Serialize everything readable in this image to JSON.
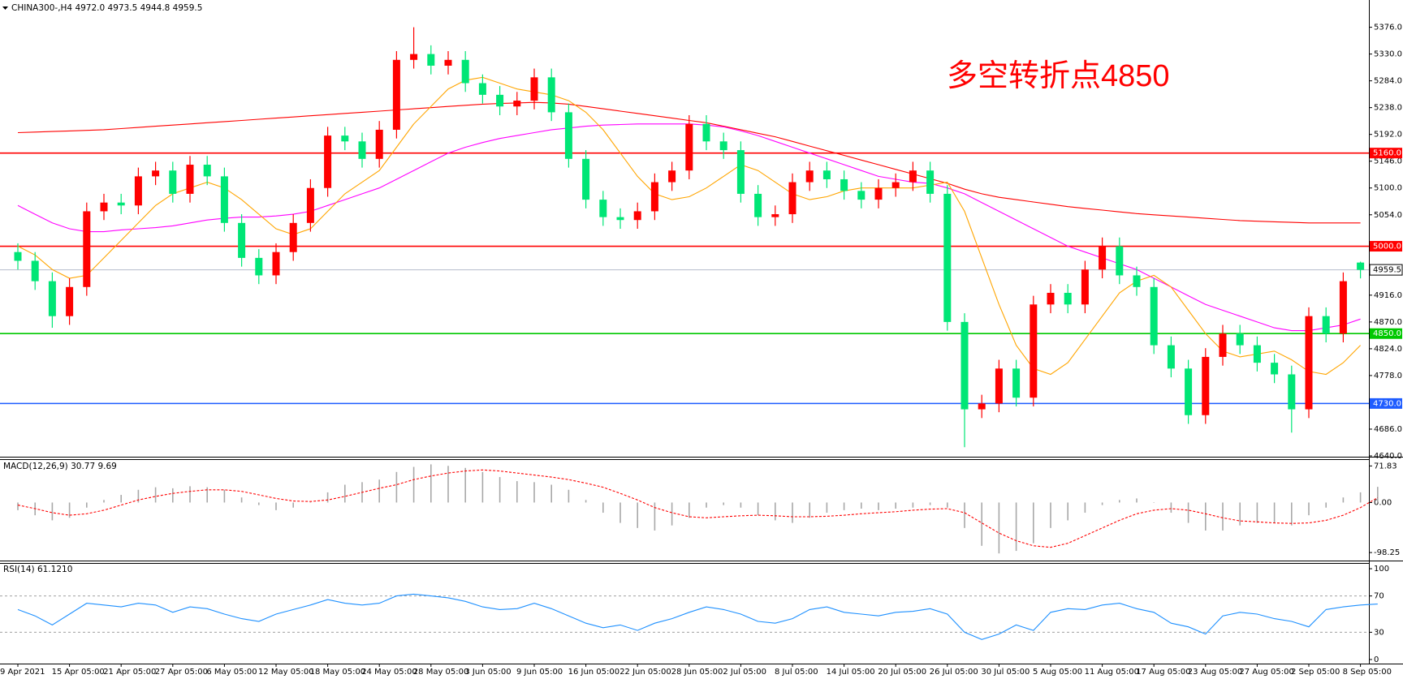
{
  "chart_data": [
    {
      "type": "candlestick",
      "title": "CHINA300-,H4  4972.0 4973.5 4944.8 4959.5",
      "up_color": "#ff0000",
      "down_color": "#00e676",
      "categories": [
        "9 Apr 2021",
        null,
        null,
        "15 Apr 05:00",
        null,
        null,
        "21 Apr 05:00",
        null,
        null,
        "27 Apr 05:00",
        null,
        null,
        "6 May 05:00",
        null,
        null,
        "12 May 05:00",
        null,
        null,
        "18 May 05:00",
        null,
        null,
        "24 May 05:00",
        null,
        null,
        "28 May 05:00",
        null,
        null,
        "3 Jun 05:00",
        null,
        null,
        "9 Jun 05:00",
        null,
        null,
        "16 Jun 05:00",
        null,
        null,
        "22 Jun 05:00",
        null,
        null,
        "28 Jun 05:00",
        null,
        null,
        "2 Jul 05:00",
        null,
        null,
        "8 Jul 05:00",
        null,
        null,
        "14 Jul 05:00",
        null,
        null,
        "20 Jul 05:00",
        null,
        null,
        "26 Jul 05:00",
        null,
        null,
        "30 Jul 05:00",
        null,
        null,
        "5 Aug 05:00",
        null,
        null,
        "11 Aug 05:00",
        null,
        null,
        "17 Aug 05:00",
        null,
        null,
        "23 Aug 05:00",
        null,
        null,
        "27 Aug 05:00",
        null,
        null,
        "2 Sep 05:00",
        null,
        null,
        "8 Sep 05:00"
      ],
      "open": [
        4990,
        4975,
        4940,
        4880,
        4930,
        5060,
        5075,
        5070,
        5120,
        5130,
        5090,
        5140,
        5120,
        5040,
        4980,
        4950,
        4990,
        5040,
        5100,
        5190,
        5180,
        5150,
        5200,
        5320,
        5330,
        5310,
        5320,
        5280,
        5260,
        5240,
        5250,
        5290,
        5230,
        5150,
        5080,
        5050,
        5045,
        5060,
        5110,
        5130,
        5210,
        5180,
        5165,
        5090,
        5050,
        5055,
        5110,
        5130,
        5115,
        5095,
        5080,
        5100,
        5110,
        5130,
        5090,
        4870,
        4720,
        4730,
        4790,
        4740,
        4900,
        4920,
        4900,
        4960,
        5000,
        4950,
        4930,
        4830,
        4790,
        4710,
        4810,
        4850,
        4830,
        4800,
        4780,
        4720,
        4880,
        4850,
        4972.0
      ],
      "high": [
        5005,
        4990,
        4955,
        4945,
        5075,
        5090,
        5090,
        5135,
        5145,
        5145,
        5155,
        5155,
        5135,
        5055,
        4995,
        5005,
        5055,
        5115,
        5205,
        5205,
        5195,
        5215,
        5335,
        5376,
        5345,
        5335,
        5335,
        5295,
        5275,
        5265,
        5305,
        5305,
        5245,
        5165,
        5095,
        5065,
        5075,
        5125,
        5145,
        5225,
        5225,
        5195,
        5180,
        5105,
        5070,
        5125,
        5145,
        5145,
        5130,
        5110,
        5115,
        5125,
        5145,
        5145,
        5105,
        4885,
        4745,
        4805,
        4805,
        4915,
        4935,
        4935,
        4975,
        5015,
        5015,
        4965,
        4945,
        4845,
        4805,
        4825,
        4865,
        4865,
        4845,
        4815,
        4795,
        4895,
        4895,
        4955,
        4973.5
      ],
      "low": [
        4960,
        4925,
        4860,
        4865,
        4915,
        5045,
        5055,
        5055,
        5105,
        5075,
        5075,
        5105,
        5025,
        4965,
        4935,
        4935,
        4975,
        5025,
        5085,
        5165,
        5135,
        5135,
        5185,
        5305,
        5295,
        5295,
        5265,
        5245,
        5225,
        5225,
        5235,
        5215,
        5135,
        5065,
        5035,
        5030,
        5030,
        5045,
        5095,
        5115,
        5165,
        5150,
        5075,
        5035,
        5035,
        5040,
        5095,
        5100,
        5080,
        5065,
        5065,
        5085,
        5095,
        5075,
        4855,
        4655,
        4705,
        4715,
        4725,
        4725,
        4885,
        4885,
        4885,
        4945,
        4935,
        4915,
        4815,
        4775,
        4695,
        4695,
        4795,
        4815,
        4785,
        4765,
        4680,
        4705,
        4835,
        4835,
        4944.8
      ],
      "close": [
        4975,
        4940,
        4880,
        4930,
        5060,
        5075,
        5070,
        5120,
        5130,
        5090,
        5140,
        5120,
        5040,
        4980,
        4950,
        4990,
        5040,
        5100,
        5190,
        5180,
        5150,
        5200,
        5320,
        5330,
        5310,
        5320,
        5280,
        5260,
        5240,
        5250,
        5290,
        5230,
        5150,
        5080,
        5050,
        5045,
        5060,
        5110,
        5130,
        5210,
        5180,
        5165,
        5090,
        5050,
        5055,
        5110,
        5130,
        5115,
        5095,
        5080,
        5100,
        5110,
        5130,
        5090,
        4870,
        4720,
        4730,
        4790,
        4740,
        4900,
        4920,
        4900,
        4960,
        5000,
        4950,
        4930,
        4830,
        4790,
        4710,
        4810,
        4850,
        4830,
        4800,
        4780,
        4720,
        4880,
        4850,
        4940,
        4959.5
      ],
      "series": [
        {
          "color": "#ff0000",
          "values": [
            5195,
            5196,
            5197,
            5198,
            5199,
            5200,
            5202,
            5204,
            5206,
            5208,
            5210,
            5212,
            5214,
            5216,
            5218,
            5220,
            5222,
            5224,
            5226,
            5228,
            5230,
            5232,
            5234,
            5236,
            5238,
            5240,
            5242,
            5244,
            5245,
            5246,
            5247,
            5246,
            5244,
            5240,
            5236,
            5232,
            5228,
            5224,
            5220,
            5216,
            5212,
            5206,
            5200,
            5194,
            5188,
            5180,
            5172,
            5164,
            5156,
            5148,
            5140,
            5132,
            5124,
            5116,
            5108,
            5098,
            5090,
            5084,
            5080,
            5076,
            5072,
            5068,
            5065,
            5062,
            5059,
            5056,
            5054,
            5052,
            5050,
            5048,
            5046,
            5044,
            5043,
            5042,
            5041,
            5040,
            5040,
            5040,
            5040
          ]
        },
        {
          "color": "#ff00ff",
          "values": [
            5070,
            5055,
            5040,
            5030,
            5025,
            5025,
            5028,
            5030,
            5032,
            5035,
            5040,
            5045,
            5048,
            5050,
            5050,
            5052,
            5055,
            5060,
            5070,
            5080,
            5090,
            5100,
            5115,
            5130,
            5145,
            5160,
            5170,
            5178,
            5185,
            5190,
            5195,
            5200,
            5203,
            5206,
            5208,
            5209,
            5210,
            5210,
            5210,
            5210,
            5208,
            5205,
            5198,
            5190,
            5180,
            5170,
            5160,
            5150,
            5140,
            5130,
            5120,
            5115,
            5110,
            5108,
            5100,
            5090,
            5075,
            5060,
            5045,
            5030,
            5015,
            5000,
            4990,
            4980,
            4970,
            4960,
            4945,
            4930,
            4915,
            4900,
            4890,
            4880,
            4870,
            4860,
            4855,
            4855,
            4860,
            4865,
            4875
          ]
        },
        {
          "color": "#ffa500",
          "values": [
            5000,
            4985,
            4960,
            4945,
            4950,
            4980,
            5010,
            5040,
            5070,
            5090,
            5100,
            5110,
            5100,
            5080,
            5055,
            5030,
            5020,
            5030,
            5060,
            5090,
            5110,
            5130,
            5170,
            5210,
            5240,
            5270,
            5285,
            5290,
            5280,
            5270,
            5265,
            5260,
            5250,
            5230,
            5200,
            5160,
            5120,
            5090,
            5080,
            5085,
            5100,
            5120,
            5140,
            5130,
            5110,
            5090,
            5080,
            5085,
            5095,
            5100,
            5100,
            5100,
            5100,
            5105,
            5110,
            5060,
            4980,
            4900,
            4830,
            4790,
            4780,
            4800,
            4840,
            4880,
            4920,
            4940,
            4950,
            4930,
            4890,
            4850,
            4820,
            4810,
            4815,
            4820,
            4805,
            4785,
            4780,
            4800,
            4830
          ]
        }
      ],
      "levels": [
        {
          "value": 5160,
          "label": "5160.0",
          "color": "#ff0000"
        },
        {
          "value": 5000,
          "label": "5000.0",
          "color": "#ff0000"
        },
        {
          "value": 4850,
          "label": "4850.0",
          "color": "#00c800"
        },
        {
          "value": 4730,
          "label": "4730.0",
          "color": "#1e5cff"
        }
      ],
      "price_line": {
        "value": 4959.5,
        "label": "4959.5",
        "color": "#b4bccc"
      },
      "annotation": {
        "text": "多空转折点4850",
        "color": "#ff0000"
      },
      "ylim": [
        4640,
        5420
      ],
      "yticks": [
        {
          "value": 5376,
          "label": "5376.0"
        },
        {
          "value": 5330,
          "label": "5330.0"
        },
        {
          "value": 5284,
          "label": "5284.0"
        },
        {
          "value": 5238,
          "label": "5238.0"
        },
        {
          "value": 5192,
          "label": "5192.0"
        },
        {
          "value": 5146,
          "label": "5146.0"
        },
        {
          "value": 5100,
          "label": "5100.0"
        },
        {
          "value": 5054,
          "label": "5054.0"
        },
        {
          "value": 4916,
          "label": "4916.0"
        },
        {
          "value": 4870,
          "label": "4870.0"
        },
        {
          "value": 4824,
          "label": "4824.0"
        },
        {
          "value": 4778,
          "label": "4778.0"
        },
        {
          "value": 4686,
          "label": "4686.0"
        },
        {
          "value": 4640,
          "label": "4640.0"
        }
      ]
    },
    {
      "type": "macd",
      "title": "MACD(12,26,9) 30.77 9.69",
      "histogram_color": "#a8a8a8",
      "signal_color": "#ff0000",
      "histogram": [
        -15,
        -25,
        -35,
        -30,
        -10,
        5,
        15,
        25,
        30,
        28,
        32,
        30,
        25,
        10,
        -5,
        -15,
        -10,
        0,
        20,
        35,
        40,
        45,
        60,
        70,
        75,
        72,
        68,
        60,
        50,
        42,
        40,
        35,
        25,
        5,
        -20,
        -40,
        -50,
        -55,
        -45,
        -30,
        -10,
        -5,
        -10,
        -25,
        -35,
        -40,
        -30,
        -20,
        -15,
        -12,
        -15,
        -12,
        -10,
        -5,
        -10,
        -50,
        -85,
        -100,
        -95,
        -80,
        -50,
        -35,
        -20,
        -5,
        5,
        8,
        0,
        -20,
        -40,
        -55,
        -55,
        -45,
        -40,
        -40,
        -45,
        -25,
        -10,
        10,
        20,
        30.77
      ],
      "signal": [
        -5,
        -12,
        -20,
        -25,
        -22,
        -15,
        -5,
        5,
        12,
        18,
        22,
        25,
        25,
        22,
        15,
        8,
        3,
        2,
        5,
        12,
        20,
        28,
        35,
        45,
        52,
        58,
        62,
        64,
        62,
        58,
        54,
        50,
        45,
        38,
        30,
        18,
        5,
        -10,
        -20,
        -28,
        -30,
        -28,
        -26,
        -25,
        -26,
        -28,
        -28,
        -27,
        -25,
        -22,
        -20,
        -18,
        -15,
        -13,
        -12,
        -20,
        -40,
        -60,
        -75,
        -85,
        -88,
        -80,
        -65,
        -50,
        -35,
        -22,
        -15,
        -12,
        -15,
        -22,
        -30,
        -36,
        -38,
        -40,
        -41,
        -40,
        -35,
        -25,
        -10,
        9.69
      ],
      "ylim": [
        -114,
        82
      ],
      "yticks": [
        {
          "value": 71.83,
          "label": "71.83"
        },
        {
          "value": 0,
          "label": "0.00"
        },
        {
          "value": -98.25,
          "label": "-98.25"
        }
      ]
    },
    {
      "type": "rsi",
      "title": "RSI(14) 61.1210",
      "color": "#1e90ff",
      "values": [
        55,
        48,
        38,
        50,
        62,
        60,
        58,
        62,
        60,
        52,
        58,
        56,
        50,
        45,
        42,
        50,
        55,
        60,
        66,
        62,
        60,
        62,
        70,
        72,
        70,
        68,
        64,
        58,
        55,
        56,
        62,
        56,
        48,
        40,
        35,
        38,
        32,
        40,
        45,
        52,
        58,
        55,
        50,
        42,
        40,
        45,
        55,
        58,
        52,
        50,
        48,
        52,
        53,
        56,
        50,
        30,
        22,
        28,
        38,
        32,
        52,
        56,
        55,
        60,
        62,
        56,
        52,
        40,
        36,
        28,
        48,
        52,
        50,
        45,
        42,
        36,
        55,
        58,
        60,
        61.121
      ],
      "ylim": [
        -4.5,
        105.4
      ],
      "yticks": [
        100,
        70,
        30,
        0
      ],
      "dashed_levels": [
        70,
        30
      ]
    }
  ]
}
